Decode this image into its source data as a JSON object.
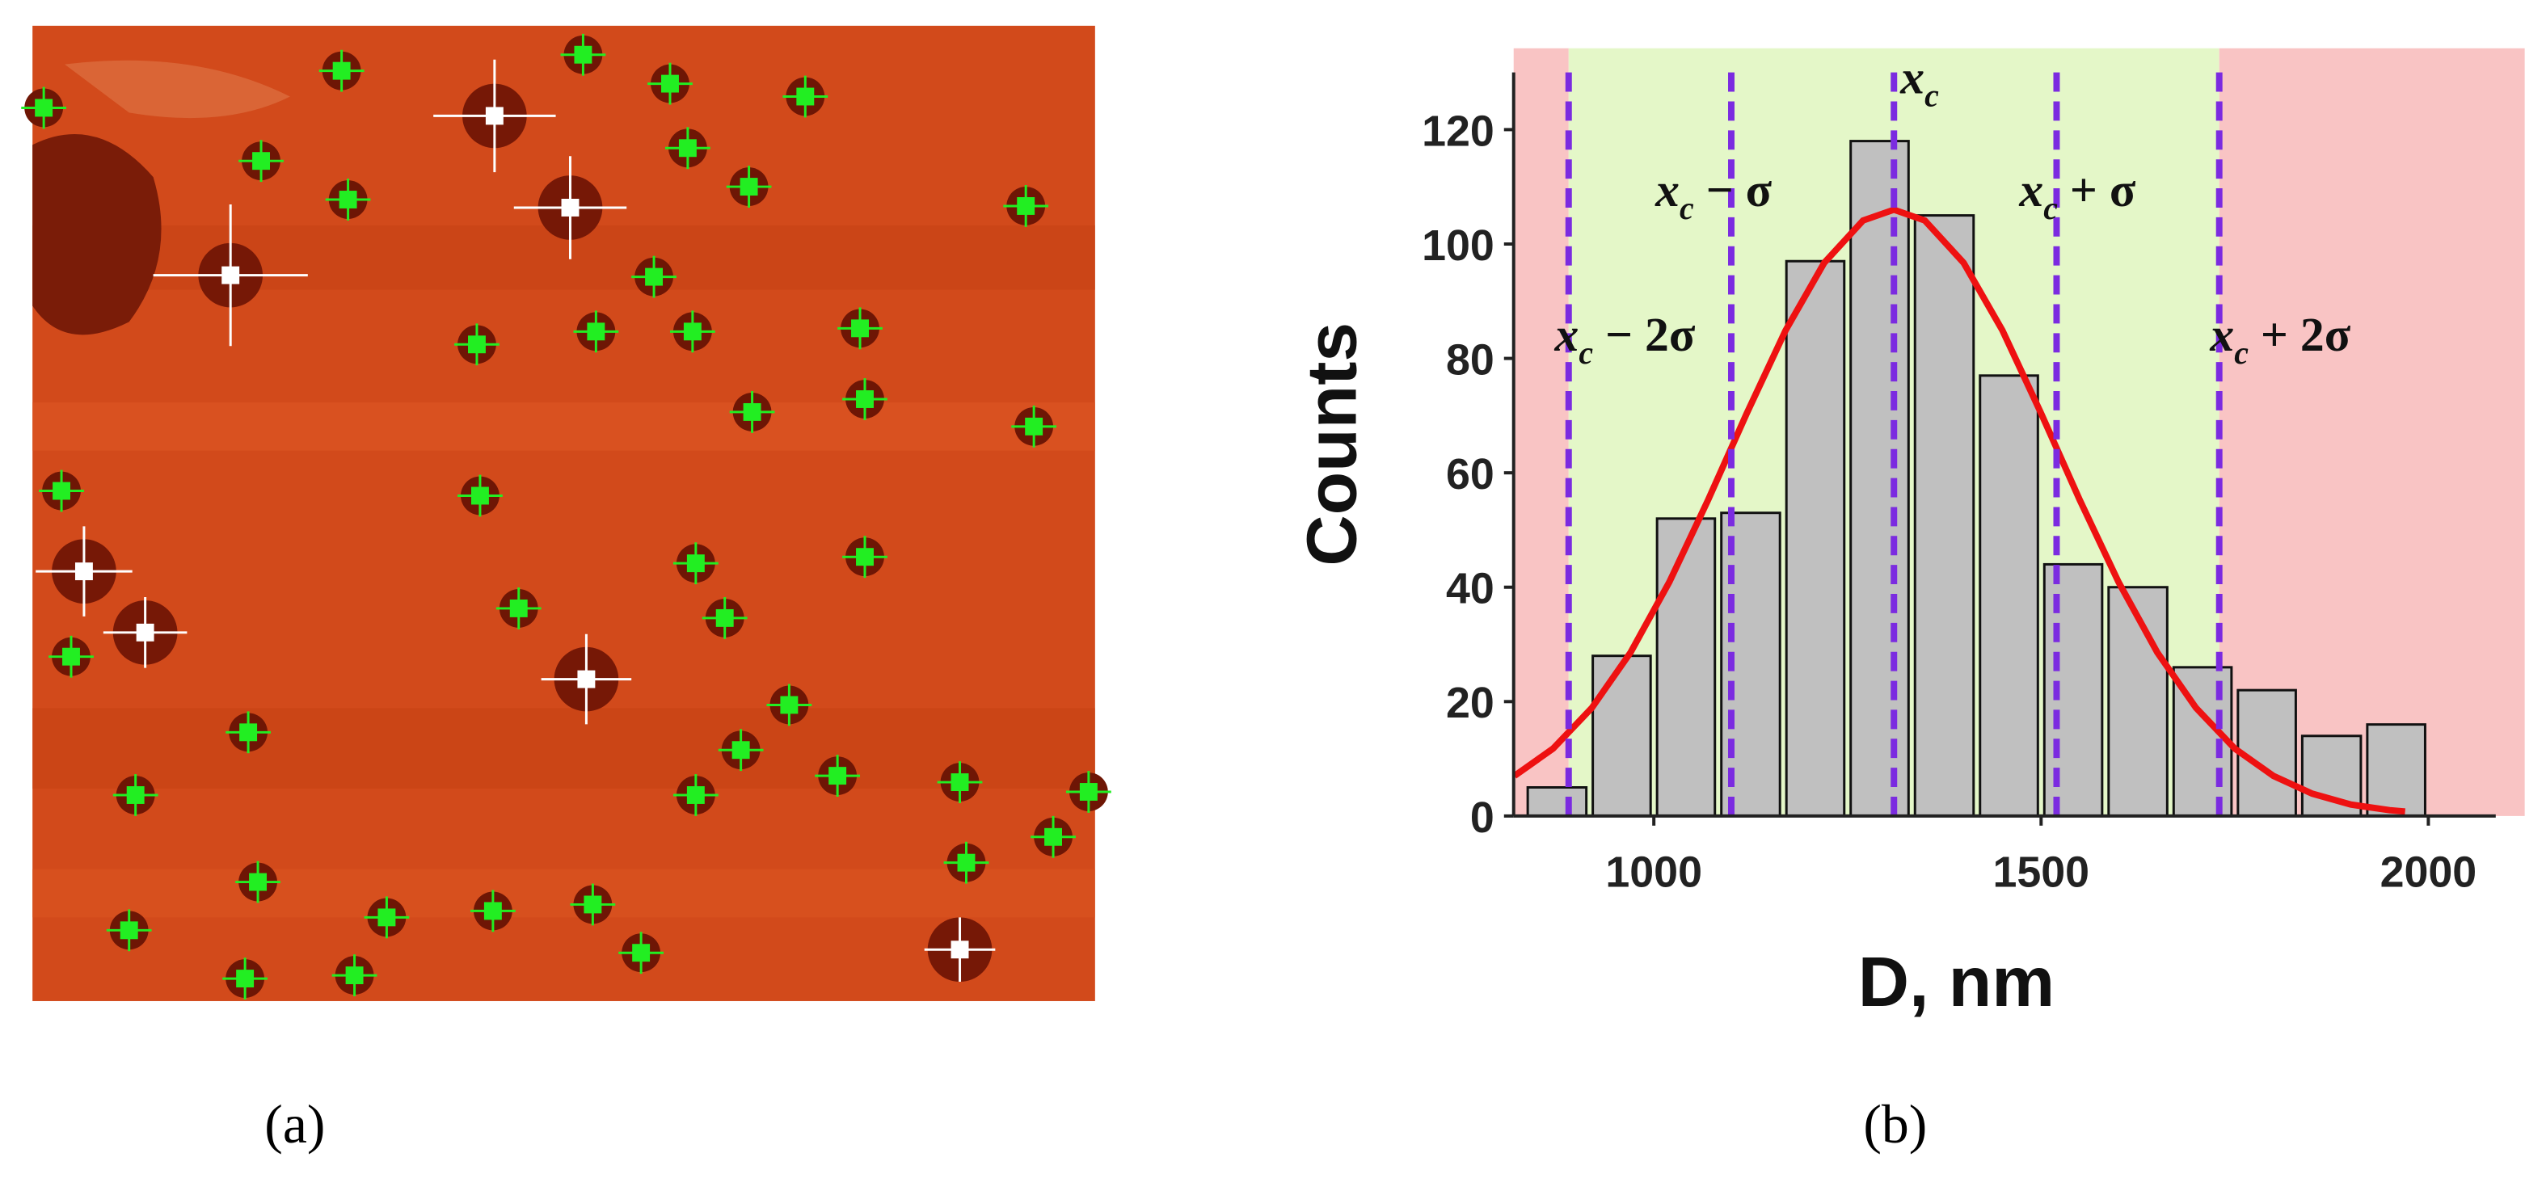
{
  "captions": [
    "(a)",
    "(b)"
  ],
  "chart_data": {
    "type": "histogram",
    "xlabel": "D, nm",
    "ylabel": "Counts",
    "bins": [
      833,
      917,
      1000,
      1083,
      1167,
      1250,
      1333,
      1417,
      1500,
      1583,
      1667,
      1750,
      1833,
      1917,
      2000
    ],
    "values": [
      5,
      28,
      52,
      53,
      97,
      118,
      105,
      77,
      44,
      40,
      26,
      22,
      14,
      16
    ],
    "color": "#c0c0c0",
    "xlim": [
      819,
      2087
    ],
    "ylim": [
      0,
      130
    ],
    "xticks": [
      1000,
      1500,
      2000
    ],
    "yticks": [
      0,
      20,
      40,
      60,
      80,
      100,
      120
    ],
    "fit": {
      "type": "line",
      "color": "#ee1111",
      "x": [
        820,
        870,
        920,
        970,
        1020,
        1070,
        1120,
        1170,
        1220,
        1270,
        1310,
        1350,
        1400,
        1450,
        1500,
        1550,
        1600,
        1650,
        1700,
        1750,
        1800,
        1850,
        1900,
        1950,
        1970
      ],
      "values": [
        7.0,
        11.8,
        18.9,
        28.6,
        40.9,
        55.2,
        70.4,
        84.9,
        96.7,
        104.1,
        106,
        104.1,
        96.7,
        84.9,
        70.4,
        55.2,
        40.9,
        28.6,
        18.9,
        11.8,
        7.0,
        3.9,
        2.0,
        1.0,
        0.8
      ]
    },
    "markers": [
      {
        "x": 890,
        "symbol": "x",
        "subscript": "c",
        "suffix": " − 2σ"
      },
      {
        "x": 1100,
        "symbol": "x",
        "subscript": "c",
        "suffix": " − σ"
      },
      {
        "x": 1310,
        "symbol": "x",
        "subscript": "c",
        "suffix": ""
      },
      {
        "x": 1520,
        "symbol": "x",
        "subscript": "c",
        "suffix": " + σ"
      },
      {
        "x": 1730,
        "symbol": "x",
        "subscript": "c",
        "suffix": " + 2σ"
      }
    ],
    "marker_color": "#7b2be0",
    "band_colors": {
      "outside": "#f9c4c4",
      "inside": "#e4f7c8"
    }
  }
}
